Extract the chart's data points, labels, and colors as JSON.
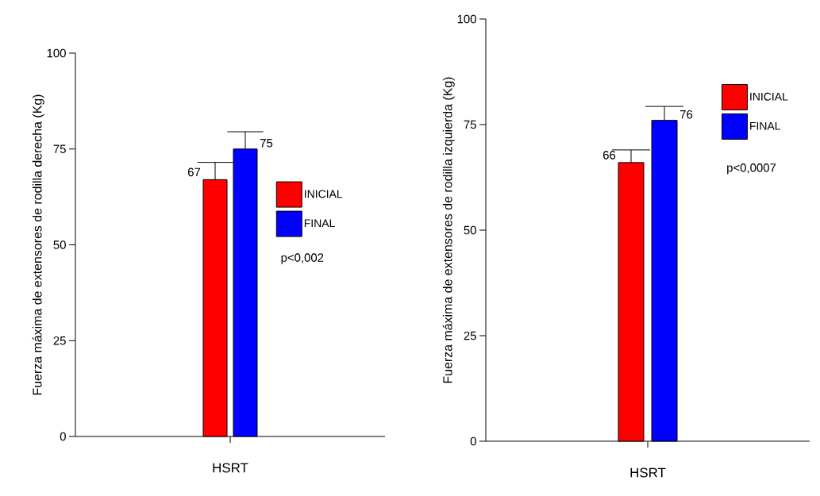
{
  "chart_data": [
    {
      "type": "bar",
      "ylabel": "Fuerza máxima de extensores de rodilla derecha (Kg)",
      "categories": [
        "HSRT"
      ],
      "series": [
        {
          "name": "INICIAL",
          "color": "#ff0000",
          "values": [
            67
          ],
          "errors": [
            [
              67,
              71.5
            ]
          ]
        },
        {
          "name": "FINAL",
          "color": "#0000ff",
          "values": [
            75
          ],
          "errors": [
            [
              75,
              79.5
            ]
          ]
        }
      ],
      "ylim": [
        0,
        100
      ],
      "yticks": [
        0,
        25,
        50,
        75,
        100
      ],
      "data_labels": true,
      "legend": "right",
      "annotations": [
        "p<0,002"
      ]
    },
    {
      "type": "bar",
      "ylabel": "Fuerza máxima de extensores de rodilla izquierda (Kg)",
      "categories": [
        "HSRT"
      ],
      "series": [
        {
          "name": "INICIAL",
          "color": "#ff0000",
          "values": [
            66
          ],
          "errors": [
            [
              66,
              69
            ]
          ]
        },
        {
          "name": "FINAL",
          "color": "#0000ff",
          "values": [
            76
          ],
          "errors": [
            [
              76,
              79.3
            ]
          ]
        }
      ],
      "ylim": [
        0,
        100
      ],
      "yticks": [
        0,
        25,
        50,
        75,
        100
      ],
      "data_labels": true,
      "legend": "top right",
      "annotations": [
        "p<0,0007"
      ]
    }
  ]
}
